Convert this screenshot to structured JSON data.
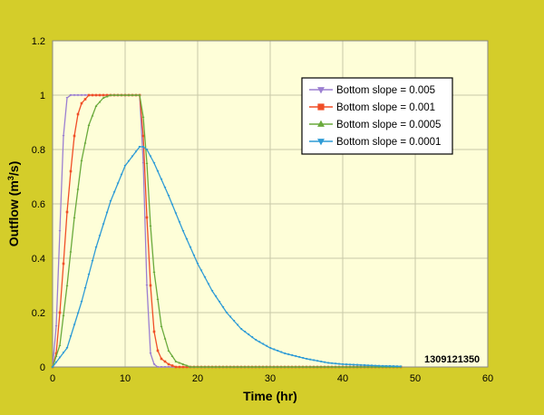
{
  "chart_data": {
    "type": "line",
    "title": "",
    "xlabel": "Time (hr)",
    "ylabel_main": "Outflow (m",
    "ylabel_sup": "3",
    "ylabel_tail": "/s)",
    "xlim": [
      0,
      60
    ],
    "ylim": [
      0,
      1.2
    ],
    "xticks": [
      0,
      10,
      20,
      30,
      40,
      50,
      60
    ],
    "yticks": [
      0,
      0.2,
      0.4,
      0.6,
      0.8,
      1,
      1.2
    ],
    "ytick_labels": [
      "0",
      "0.2",
      "0.4",
      "0.6",
      "0.8",
      "1",
      "1.2"
    ],
    "grid": true,
    "legend_position": "top-right",
    "annotation": "1309121350",
    "colors": {
      "page_background": "#d4cd2a",
      "plot_background": "#fefed8",
      "grid": "#c8c8a8"
    },
    "series": [
      {
        "name": "Bottom slope = 0.005",
        "color": "#9b7fd1",
        "marker": "triangle-down",
        "x": [
          0,
          0.5,
          1,
          1.5,
          2,
          2.5,
          3,
          4,
          6,
          8,
          10,
          12,
          12.5,
          13,
          13.5,
          14,
          14.5,
          15,
          16,
          20,
          30,
          40,
          48
        ],
        "y": [
          0,
          0.15,
          0.5,
          0.85,
          0.99,
          1,
          1,
          1,
          1,
          1,
          1,
          1,
          0.75,
          0.3,
          0.05,
          0.01,
          0,
          0,
          0,
          0,
          0,
          0,
          0
        ]
      },
      {
        "name": "Bottom slope = 0.001",
        "color": "#f04e27",
        "marker": "square",
        "x": [
          0,
          0.5,
          1,
          1.5,
          2,
          2.5,
          3,
          3.5,
          4,
          5,
          6,
          8,
          10,
          12,
          12.5,
          13,
          13.5,
          14,
          14.5,
          15,
          16,
          17,
          18,
          20,
          30,
          40,
          48
        ],
        "y": [
          0,
          0.05,
          0.2,
          0.38,
          0.57,
          0.72,
          0.85,
          0.93,
          0.97,
          1,
          1,
          1,
          1,
          1,
          0.85,
          0.55,
          0.3,
          0.13,
          0.06,
          0.03,
          0.01,
          0,
          0,
          0,
          0,
          0,
          0
        ]
      },
      {
        "name": "Bottom slope = 0.0005",
        "color": "#6aaa3c",
        "marker": "triangle-up",
        "x": [
          0,
          1,
          2,
          3,
          4,
          5,
          6,
          7,
          8,
          10,
          12,
          12.5,
          13,
          13.5,
          14,
          15,
          16,
          17,
          18,
          19,
          20,
          30,
          40,
          48
        ],
        "y": [
          0,
          0.08,
          0.3,
          0.55,
          0.76,
          0.89,
          0.96,
          0.99,
          1,
          1,
          1,
          0.92,
          0.75,
          0.52,
          0.35,
          0.15,
          0.06,
          0.02,
          0.01,
          0,
          0,
          0,
          0,
          0
        ],
        "dense": true
      },
      {
        "name": "Bottom slope = 0.0001",
        "color": "#2e9bd6",
        "marker": "triangle-down",
        "x": [
          0,
          2,
          4,
          6,
          8,
          10,
          12,
          12.5,
          13,
          14,
          16,
          18,
          20,
          22,
          24,
          26,
          28,
          30,
          32,
          35,
          38,
          40,
          45,
          48
        ],
        "y": [
          0,
          0.07,
          0.24,
          0.44,
          0.61,
          0.74,
          0.81,
          0.81,
          0.8,
          0.75,
          0.63,
          0.5,
          0.38,
          0.28,
          0.2,
          0.14,
          0.1,
          0.07,
          0.05,
          0.03,
          0.015,
          0.01,
          0.004,
          0.002
        ],
        "dense": true
      }
    ]
  }
}
